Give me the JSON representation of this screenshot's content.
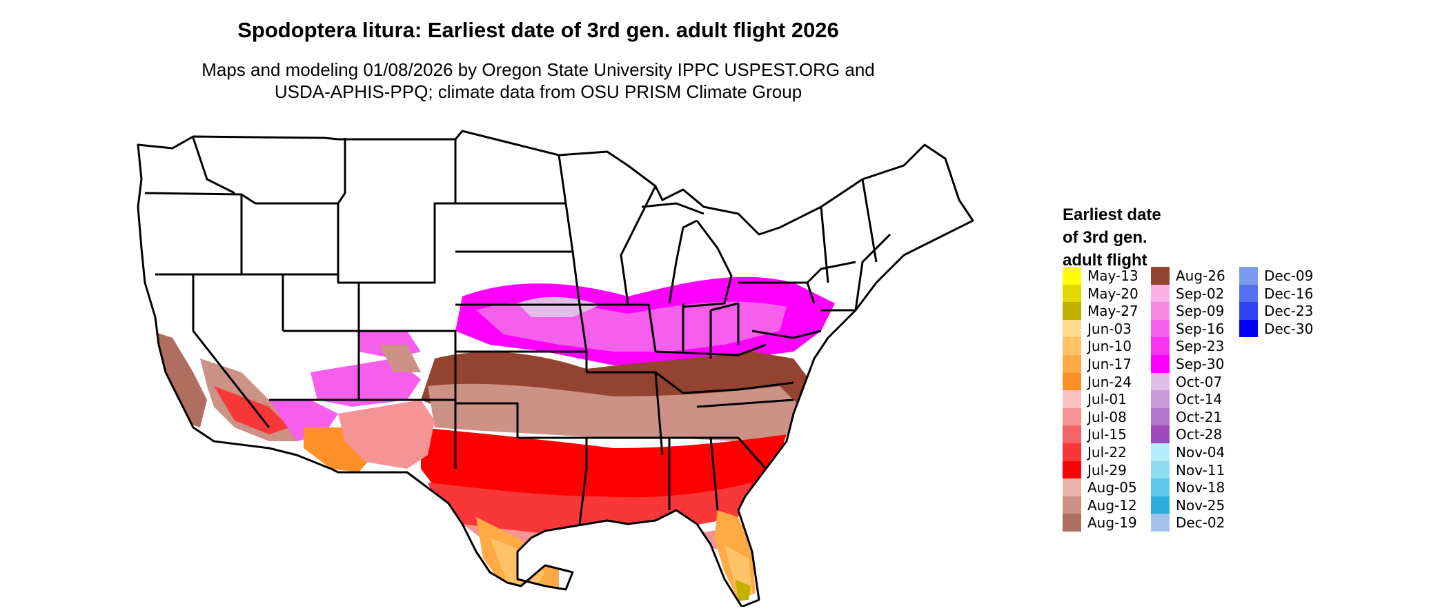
{
  "title": "Spodoptera litura: Earliest date of 3rd gen. adult flight 2026",
  "subtitle_line1": "Maps and modeling 01/08/2026 by Oregon State University IPPC USPEST.ORG and",
  "subtitle_line2": "USDA-APHIS-PPQ; climate data from OSU PRISM Climate Group",
  "legend": {
    "title_lines": [
      "Earliest date",
      "of 3rd gen.",
      "adult flight"
    ],
    "columns": [
      [
        {
          "label": "May-13",
          "color": "#FFFF00"
        },
        {
          "label": "May-20",
          "color": "#E0D800"
        },
        {
          "label": "May-27",
          "color": "#C2B100"
        },
        {
          "label": "Jun-03",
          "color": "#FFD98C"
        },
        {
          "label": "Jun-10",
          "color": "#FFC266"
        },
        {
          "label": "Jun-17",
          "color": "#FFAA44"
        },
        {
          "label": "Jun-24",
          "color": "#FF9028"
        },
        {
          "label": "Jul-01",
          "color": "#F7C3C3"
        },
        {
          "label": "Jul-08",
          "color": "#F49494"
        },
        {
          "label": "Jul-15",
          "color": "#F56464"
        },
        {
          "label": "Jul-22",
          "color": "#F83838"
        },
        {
          "label": "Jul-29",
          "color": "#FF0000"
        },
        {
          "label": "Aug-05",
          "color": "#E8B3A8"
        },
        {
          "label": "Aug-12",
          "color": "#CC9285"
        },
        {
          "label": "Aug-19",
          "color": "#B06E60"
        }
      ],
      [
        {
          "label": "Aug-26",
          "color": "#93432F"
        },
        {
          "label": "Sep-02",
          "color": "#FAB2E6"
        },
        {
          "label": "Sep-09",
          "color": "#F68BE6"
        },
        {
          "label": "Sep-16",
          "color": "#F65EEC"
        },
        {
          "label": "Sep-23",
          "color": "#F832F0"
        },
        {
          "label": "Sep-30",
          "color": "#FF00FF"
        },
        {
          "label": "Oct-07",
          "color": "#E0BEE8"
        },
        {
          "label": "Oct-14",
          "color": "#C89ADA"
        },
        {
          "label": "Oct-21",
          "color": "#B474CC"
        },
        {
          "label": "Oct-28",
          "color": "#A04AC0"
        },
        {
          "label": "Nov-04",
          "color": "#B3EDFA"
        },
        {
          "label": "Nov-11",
          "color": "#8CDCF2"
        },
        {
          "label": "Nov-18",
          "color": "#5EC8EA"
        },
        {
          "label": "Nov-25",
          "color": "#2AAEDC"
        },
        {
          "label": "Dec-02",
          "color": "#A3C2EC"
        }
      ],
      [
        {
          "label": "Dec-09",
          "color": "#7C9BEE"
        },
        {
          "label": "Dec-16",
          "color": "#5670F0"
        },
        {
          "label": "Dec-23",
          "color": "#2E44F4"
        },
        {
          "label": "Dec-30",
          "color": "#0000FF"
        }
      ]
    ]
  },
  "colors": {
    "state_border": "#000000",
    "unreached": "#FFFFFF"
  }
}
